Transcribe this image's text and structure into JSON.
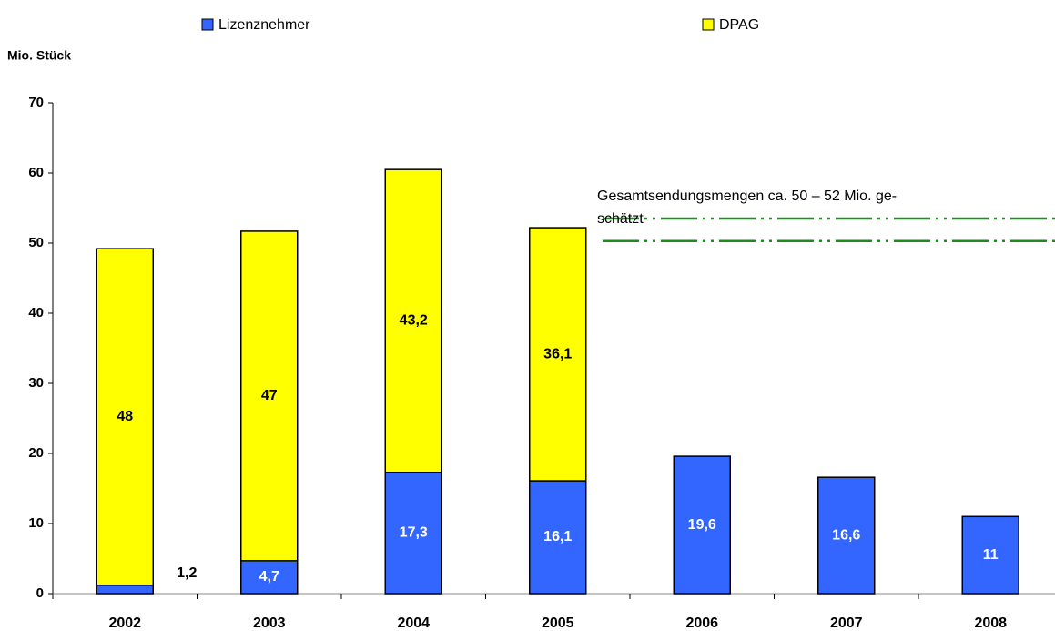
{
  "chart_data": {
    "type": "stacked_bar",
    "y_label": "Mio. Stück",
    "categories": [
      "2002",
      "2003",
      "2004",
      "2005",
      "2006",
      "2007",
      "2008"
    ],
    "series": [
      {
        "name": "Lizenznehmer",
        "color": "#3366ff",
        "values": [
          1.2,
          4.7,
          17.3,
          16.1,
          19.6,
          16.6,
          11
        ],
        "value_labels": [
          "1,2",
          "4,7",
          "17,3",
          "16,1",
          "19,6",
          "16,6",
          "11"
        ]
      },
      {
        "name": "DPAG",
        "color": "#ffff00",
        "values": [
          48,
          47,
          43.2,
          36.1,
          null,
          null,
          null
        ],
        "value_labels": [
          "48",
          "47",
          "43,2",
          "36,1",
          null,
          null,
          null
        ]
      }
    ],
    "ylim": [
      0,
      70
    ],
    "yticks": [
      0,
      10,
      20,
      30,
      40,
      50,
      60,
      70
    ],
    "legend": "top",
    "annotation": [
      "Gesamtsendungsmengen ca. 50 – 52  Mio. ge-",
      "schätzt"
    ],
    "reference_lines": {
      "values": [
        53.5,
        50.3
      ],
      "color": "#1e8c1e"
    }
  }
}
